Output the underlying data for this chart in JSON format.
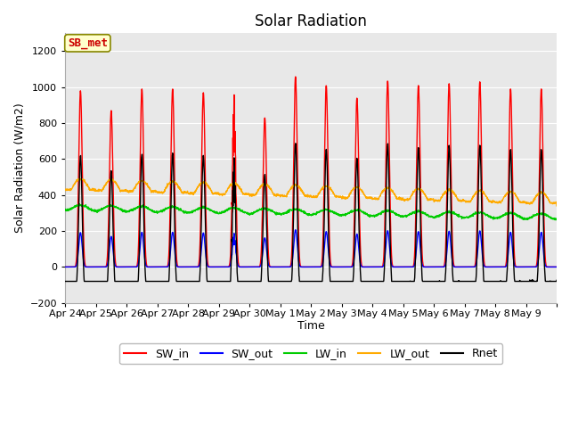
{
  "title": "Solar Radiation",
  "xlabel": "Time",
  "ylabel": "Solar Radiation (W/m2)",
  "ylim": [
    -200,
    1300
  ],
  "yticks": [
    -200,
    0,
    200,
    400,
    600,
    800,
    1000,
    1200
  ],
  "fig_bg_color": "#ffffff",
  "plot_bg_color": "#e8e8e8",
  "grid_color": "white",
  "label_box": "SB_met",
  "label_box_bg": "#ffffcc",
  "label_box_border": "#888800",
  "label_box_text_color": "#cc0000",
  "n_days": 16,
  "day_labels": [
    "Apr 24",
    "Apr 25",
    "Apr 26",
    "Apr 27",
    "Apr 28",
    "Apr 29",
    "Apr 30",
    "May 1",
    "May 2",
    "May 3",
    "May 4",
    "May 5",
    "May 6",
    "May 7",
    "May 8",
    "May 9"
  ],
  "colors": {
    "SW_in": "#ff0000",
    "SW_out": "#0000ff",
    "LW_in": "#00cc00",
    "LW_out": "#ffaa00",
    "Rnet": "#000000"
  },
  "linewidth": 1.0,
  "legend_fontsize": 9,
  "tick_fontsize": 8,
  "title_fontsize": 12
}
